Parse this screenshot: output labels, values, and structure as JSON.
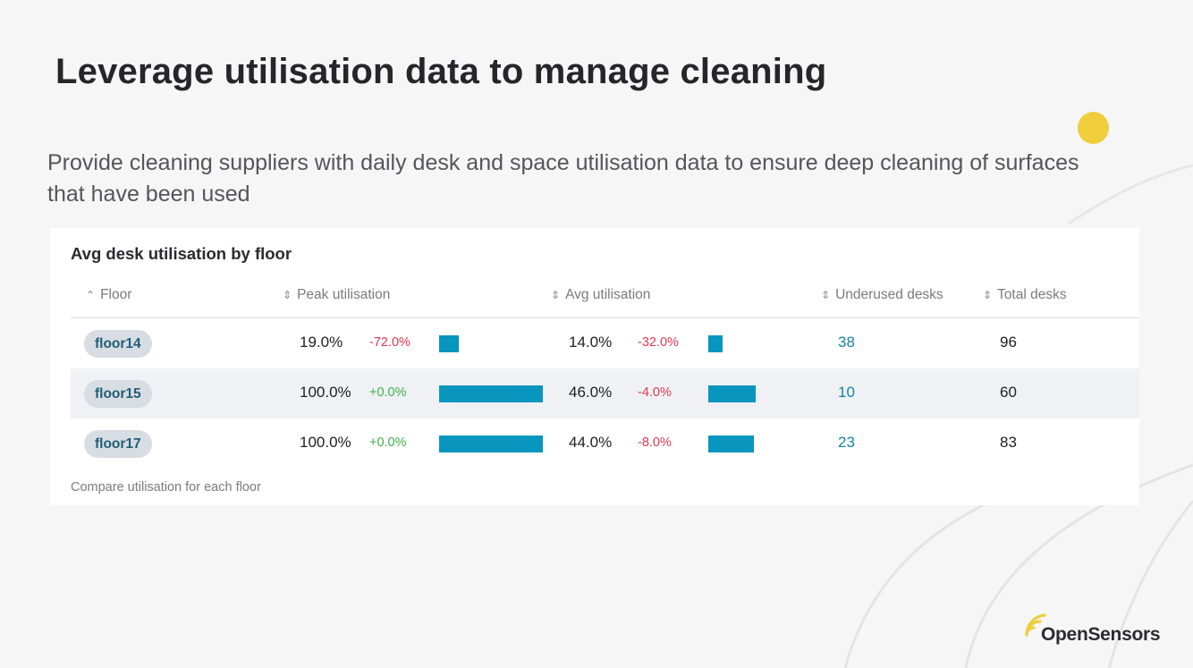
{
  "slide": {
    "title": "Leverage utilisation data to manage cleaning",
    "subtitle": "Provide cleaning suppliers with daily desk and space utilisation data to ensure deep cleaning of surfaces that have been used",
    "accent_color": "#f0cd3c"
  },
  "card": {
    "title": "Avg desk utilisation by floor",
    "footer": "Compare utilisation for each floor",
    "columns": {
      "floor": "Floor",
      "peak": "Peak utilisation",
      "avg": "Avg utilisation",
      "underused": "Underused desks",
      "total": "Total desks"
    },
    "rows": [
      {
        "floor": "floor14",
        "peak": "19.0%",
        "peak_delta": "-72.0%",
        "peak_fraction": 0.19,
        "avg": "14.0%",
        "avg_delta": "-32.0%",
        "avg_fraction": 0.14,
        "underused": "38",
        "total": "96"
      },
      {
        "floor": "floor15",
        "peak": "100.0%",
        "peak_delta": "+0.0%",
        "peak_fraction": 1.0,
        "avg": "46.0%",
        "avg_delta": "-4.0%",
        "avg_fraction": 0.46,
        "underused": "10",
        "total": "60"
      },
      {
        "floor": "floor17",
        "peak": "100.0%",
        "peak_delta": "+0.0%",
        "peak_fraction": 1.0,
        "avg": "44.0%",
        "avg_delta": "-8.0%",
        "avg_fraction": 0.44,
        "underused": "23",
        "total": "83"
      }
    ],
    "colors": {
      "bar": "#0895be",
      "negative": "#dd3a52",
      "positive": "#3fb04b",
      "link": "#1582a6"
    }
  },
  "brand": {
    "logo_text": "OpenSensors",
    "logo_icon": "signal-arcs-icon"
  }
}
